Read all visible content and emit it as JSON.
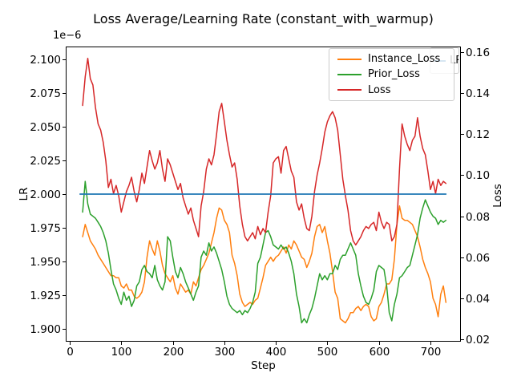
{
  "figure": {
    "title": "Loss Average/Learning Rate (constant_with_warmup)",
    "offset_text": "1e−6",
    "xlabel": "Step",
    "ylabel_left": "LR",
    "ylabel_right": "Loss"
  },
  "legend": {
    "entries": [
      {
        "label": "Instance_Loss",
        "color": "#ff7f0e"
      },
      {
        "label": "Prior_Loss",
        "color": "#2ca02c"
      },
      {
        "label": "Loss",
        "color": "#d62728"
      }
    ],
    "hidden_legend": {
      "label": "LR",
      "color": "#1f77b4"
    }
  },
  "chart_data": {
    "type": "line",
    "title": "Loss Average/Learning Rate (constant_with_warmup)",
    "xlabel": "Step",
    "grid": false,
    "legend_position": "upper right",
    "x_ticks": [
      "0",
      "100",
      "200",
      "300",
      "400",
      "500",
      "600",
      "700"
    ],
    "left_axis": {
      "label": "LR",
      "offset": "1e−6",
      "ticks": [
        "2.100",
        "2.075",
        "2.050",
        "2.025",
        "2.000",
        "1.975",
        "1.950",
        "1.925",
        "1.900"
      ],
      "lim": [
        1.8895,
        2.1095
      ]
    },
    "right_axis": {
      "label": "Loss",
      "ticks": [
        "0.16",
        "0.14",
        "0.12",
        "0.10",
        "0.08",
        "0.06",
        "0.04",
        "0.02"
      ],
      "lim": [
        0.0188,
        0.1627
      ]
    },
    "x": [
      25,
      30,
      35,
      40,
      45,
      50,
      55,
      60,
      65,
      70,
      75,
      80,
      85,
      90,
      95,
      100,
      105,
      110,
      115,
      120,
      125,
      130,
      135,
      140,
      145,
      150,
      155,
      160,
      165,
      170,
      175,
      180,
      185,
      190,
      195,
      200,
      205,
      210,
      215,
      220,
      225,
      230,
      235,
      240,
      245,
      250,
      255,
      260,
      265,
      270,
      275,
      280,
      285,
      290,
      295,
      300,
      305,
      310,
      315,
      320,
      325,
      330,
      335,
      340,
      345,
      350,
      355,
      360,
      365,
      370,
      375,
      380,
      385,
      390,
      395,
      400,
      405,
      410,
      415,
      420,
      425,
      430,
      435,
      440,
      445,
      450,
      455,
      460,
      465,
      470,
      475,
      480,
      485,
      490,
      495,
      500,
      505,
      510,
      515,
      520,
      525,
      530,
      535,
      540,
      545,
      550,
      555,
      560,
      565,
      570,
      575,
      580,
      585,
      590,
      595,
      600,
      605,
      610,
      615,
      620,
      625,
      630,
      635,
      640,
      645,
      650,
      655,
      660,
      665,
      670,
      675,
      680,
      685,
      690,
      695,
      700,
      705,
      710,
      715,
      720,
      725,
      730
    ],
    "series": [
      {
        "name": "Instance_Loss",
        "color": "#ff7f0e",
        "axis": "right",
        "values": [
          0.07,
          0.076,
          0.072,
          0.068,
          0.066,
          0.064,
          0.061,
          0.059,
          0.057,
          0.055,
          0.053,
          0.051,
          0.051,
          0.05,
          0.05,
          0.046,
          0.045,
          0.047,
          0.044,
          0.044,
          0.041,
          0.04,
          0.041,
          0.043,
          0.048,
          0.06,
          0.068,
          0.064,
          0.061,
          0.068,
          0.063,
          0.056,
          0.052,
          0.05,
          0.048,
          0.051,
          0.045,
          0.042,
          0.047,
          0.045,
          0.043,
          0.044,
          0.042,
          0.048,
          0.046,
          0.05,
          0.054,
          0.056,
          0.059,
          0.062,
          0.067,
          0.072,
          0.079,
          0.084,
          0.083,
          0.078,
          0.076,
          0.072,
          0.061,
          0.057,
          0.051,
          0.042,
          0.038,
          0.036,
          0.037,
          0.038,
          0.037,
          0.039,
          0.04,
          0.045,
          0.05,
          0.056,
          0.058,
          0.06,
          0.058,
          0.06,
          0.061,
          0.063,
          0.065,
          0.062,
          0.066,
          0.064,
          0.068,
          0.066,
          0.063,
          0.06,
          0.059,
          0.055,
          0.058,
          0.062,
          0.07,
          0.075,
          0.076,
          0.072,
          0.075,
          0.068,
          0.062,
          0.053,
          0.043,
          0.04,
          0.03,
          0.029,
          0.028,
          0.03,
          0.033,
          0.033,
          0.035,
          0.036,
          0.034,
          0.036,
          0.037,
          0.036,
          0.031,
          0.029,
          0.03,
          0.036,
          0.038,
          0.042,
          0.047,
          0.047,
          0.049,
          0.059,
          0.076,
          0.085,
          0.079,
          0.078,
          0.078,
          0.077,
          0.076,
          0.073,
          0.07,
          0.065,
          0.059,
          0.055,
          0.052,
          0.048,
          0.04,
          0.037,
          0.031,
          0.042,
          0.046,
          0.038
        ]
      },
      {
        "name": "Prior_Loss",
        "color": "#2ca02c",
        "axis": "right",
        "values": [
          0.082,
          0.097,
          0.086,
          0.081,
          0.08,
          0.079,
          0.077,
          0.075,
          0.072,
          0.068,
          0.062,
          0.054,
          0.047,
          0.044,
          0.04,
          0.037,
          0.043,
          0.039,
          0.041,
          0.036,
          0.039,
          0.046,
          0.048,
          0.054,
          0.056,
          0.053,
          0.052,
          0.05,
          0.056,
          0.049,
          0.046,
          0.044,
          0.048,
          0.07,
          0.068,
          0.06,
          0.053,
          0.05,
          0.055,
          0.052,
          0.048,
          0.045,
          0.042,
          0.039,
          0.043,
          0.046,
          0.06,
          0.063,
          0.061,
          0.067,
          0.063,
          0.065,
          0.062,
          0.058,
          0.054,
          0.048,
          0.041,
          0.037,
          0.035,
          0.034,
          0.033,
          0.034,
          0.032,
          0.034,
          0.033,
          0.035,
          0.038,
          0.043,
          0.057,
          0.06,
          0.066,
          0.072,
          0.073,
          0.07,
          0.066,
          0.065,
          0.064,
          0.066,
          0.064,
          0.065,
          0.062,
          0.058,
          0.052,
          0.042,
          0.036,
          0.028,
          0.03,
          0.028,
          0.032,
          0.035,
          0.04,
          0.046,
          0.052,
          0.049,
          0.051,
          0.049,
          0.052,
          0.052,
          0.056,
          0.054,
          0.059,
          0.061,
          0.061,
          0.064,
          0.067,
          0.064,
          0.061,
          0.052,
          0.046,
          0.041,
          0.038,
          0.037,
          0.04,
          0.044,
          0.053,
          0.056,
          0.055,
          0.054,
          0.046,
          0.033,
          0.029,
          0.037,
          0.042,
          0.05,
          0.051,
          0.053,
          0.055,
          0.056,
          0.061,
          0.066,
          0.071,
          0.079,
          0.084,
          0.088,
          0.085,
          0.082,
          0.08,
          0.079,
          0.076,
          0.078,
          0.077,
          0.078
        ]
      },
      {
        "name": "Loss",
        "color": "#d62728",
        "axis": "right",
        "values": [
          0.134,
          0.148,
          0.157,
          0.147,
          0.144,
          0.133,
          0.125,
          0.122,
          0.116,
          0.107,
          0.094,
          0.098,
          0.091,
          0.095,
          0.09,
          0.082,
          0.087,
          0.092,
          0.095,
          0.099,
          0.092,
          0.087,
          0.093,
          0.101,
          0.096,
          0.104,
          0.112,
          0.107,
          0.103,
          0.106,
          0.112,
          0.103,
          0.097,
          0.108,
          0.105,
          0.101,
          0.097,
          0.093,
          0.096,
          0.089,
          0.085,
          0.081,
          0.084,
          0.078,
          0.074,
          0.07,
          0.085,
          0.092,
          0.103,
          0.108,
          0.105,
          0.11,
          0.12,
          0.131,
          0.135,
          0.126,
          0.117,
          0.11,
          0.104,
          0.106,
          0.098,
          0.085,
          0.076,
          0.07,
          0.068,
          0.07,
          0.072,
          0.069,
          0.075,
          0.071,
          0.074,
          0.072,
          0.082,
          0.09,
          0.106,
          0.108,
          0.109,
          0.101,
          0.112,
          0.114,
          0.108,
          0.102,
          0.099,
          0.087,
          0.083,
          0.086,
          0.079,
          0.074,
          0.073,
          0.08,
          0.092,
          0.1,
          0.106,
          0.113,
          0.121,
          0.126,
          0.129,
          0.131,
          0.128,
          0.122,
          0.11,
          0.098,
          0.09,
          0.083,
          0.073,
          0.068,
          0.066,
          0.068,
          0.07,
          0.073,
          0.075,
          0.074,
          0.076,
          0.077,
          0.073,
          0.082,
          0.077,
          0.074,
          0.077,
          0.076,
          0.068,
          0.07,
          0.076,
          0.103,
          0.125,
          0.119,
          0.115,
          0.112,
          0.117,
          0.119,
          0.128,
          0.119,
          0.113,
          0.11,
          0.102,
          0.093,
          0.097,
          0.091,
          0.098,
          0.095,
          0.097,
          0.096
        ]
      },
      {
        "name": "LR",
        "color": "#1f77b4",
        "axis": "left",
        "x": [
          20,
          730
        ],
        "values": [
          2.0,
          2.0
        ]
      }
    ]
  }
}
